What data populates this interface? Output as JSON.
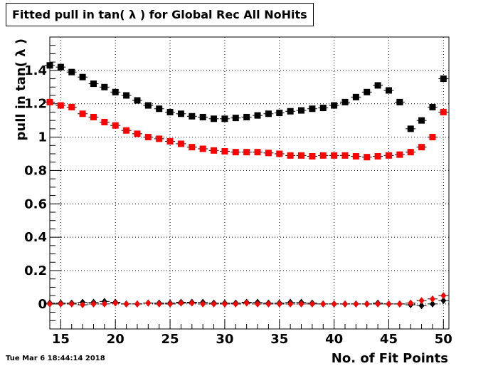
{
  "chart_data": {
    "type": "scatter",
    "title": "Fitted pull in tan( λ ) for Global Rec All NoHits",
    "xlabel": "No. of Fit Points",
    "ylabel": "pull in tan( λ )",
    "xlim": [
      14,
      50.5
    ],
    "ylim": [
      -0.15,
      1.6
    ],
    "x_ticks": [
      15,
      20,
      25,
      30,
      35,
      40,
      45,
      50
    ],
    "y_ticks": [
      0,
      0.2,
      0.4,
      0.6,
      0.8,
      1,
      1.2,
      1.4
    ],
    "y_tick_labels": [
      "0",
      "0.2",
      "0.4",
      "0.6",
      "0.8",
      "1",
      "1.2",
      "1.4"
    ],
    "grid": true,
    "x": [
      14,
      15,
      16,
      17,
      18,
      19,
      20,
      21,
      22,
      23,
      24,
      25,
      26,
      27,
      28,
      29,
      30,
      31,
      32,
      33,
      34,
      35,
      36,
      37,
      38,
      39,
      40,
      41,
      42,
      43,
      44,
      45,
      46,
      47,
      48,
      49,
      50
    ],
    "series": [
      {
        "marker": "square",
        "color": "#000000",
        "values": [
          1.43,
          1.42,
          1.39,
          1.36,
          1.32,
          1.3,
          1.27,
          1.25,
          1.22,
          1.19,
          1.17,
          1.15,
          1.14,
          1.125,
          1.12,
          1.11,
          1.11,
          1.115,
          1.12,
          1.13,
          1.14,
          1.145,
          1.155,
          1.16,
          1.17,
          1.175,
          1.19,
          1.21,
          1.24,
          1.27,
          1.31,
          1.28,
          1.21,
          1.05,
          1.1,
          1.18,
          1.35
        ]
      },
      {
        "marker": "square",
        "color": "#ff0000",
        "values": [
          1.21,
          1.19,
          1.18,
          1.14,
          1.12,
          1.09,
          1.07,
          1.04,
          1.02,
          1.0,
          0.99,
          0.975,
          0.96,
          0.94,
          0.93,
          0.92,
          0.915,
          0.91,
          0.91,
          0.91,
          0.905,
          0.9,
          0.89,
          0.89,
          0.885,
          0.89,
          0.89,
          0.89,
          0.885,
          0.88,
          0.885,
          0.89,
          0.895,
          0.91,
          0.94,
          1.0,
          1.15
        ]
      },
      {
        "marker": "diamond",
        "color": "#000000",
        "values": [
          0.005,
          0.005,
          0.005,
          0.01,
          0.01,
          0.015,
          0.01,
          0.0,
          0.0,
          0.005,
          0.005,
          0.005,
          0.01,
          0.01,
          0.01,
          0.005,
          0.005,
          0.005,
          0.01,
          0.01,
          0.005,
          0.005,
          0.01,
          0.01,
          0.005,
          0.0,
          0.0,
          0.0,
          0.0,
          0.0,
          0.005,
          0.0,
          0.0,
          -0.005,
          -0.01,
          0.0,
          0.02
        ]
      },
      {
        "marker": "diamond",
        "color": "#ff0000",
        "values": [
          0.0,
          0.0,
          0.0,
          -0.005,
          0.0,
          0.0,
          0.005,
          0.0,
          0.0,
          0.005,
          0.0,
          0.0,
          0.005,
          0.005,
          0.0,
          0.0,
          0.0,
          0.0,
          0.005,
          0.0,
          0.0,
          0.0,
          0.0,
          0.0,
          0.0,
          0.0,
          0.0,
          0.0,
          0.0,
          0.0,
          0.0,
          0.0,
          0.0,
          0.005,
          0.02,
          0.03,
          0.05
        ]
      }
    ]
  },
  "footer": {
    "timestamp": "Tue Mar  6 18:44:14 2018"
  }
}
